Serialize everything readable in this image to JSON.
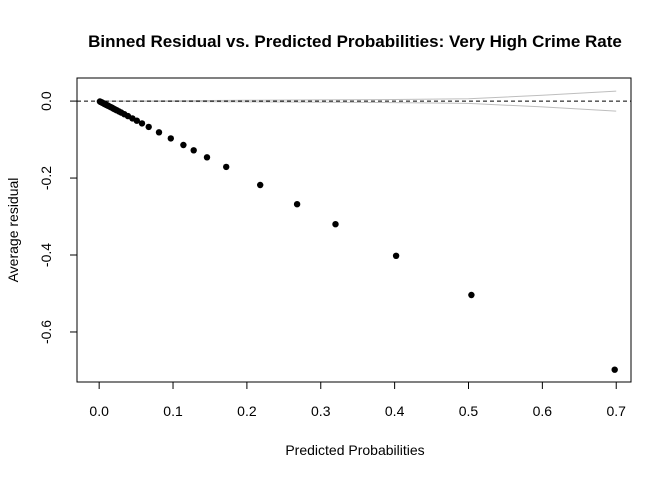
{
  "chart_data": {
    "type": "scatter",
    "title": "Binned Residual vs. Predicted Probabilities: Very High Crime Rate",
    "xlabel": "Predicted Probabilities",
    "ylabel": "Average residual",
    "xlim": [
      -0.03,
      0.72
    ],
    "ylim": [
      -0.73,
      0.06
    ],
    "x_ticks": [
      0.0,
      0.1,
      0.2,
      0.3,
      0.4,
      0.5,
      0.6,
      0.7
    ],
    "x_tick_labels": [
      "0.0",
      "0.1",
      "0.2",
      "0.3",
      "0.4",
      "0.5",
      "0.6",
      "0.7"
    ],
    "y_ticks": [
      0.0,
      -0.2,
      -0.4,
      -0.6
    ],
    "y_tick_labels": [
      "0.0",
      "-0.2",
      "-0.4",
      "-0.6"
    ],
    "grid": false,
    "reference_line_y": 0.0,
    "point_color": "#000000",
    "band_color": "#bebebe",
    "series": [
      {
        "x": [
          0.001,
          0.002,
          0.003,
          0.004,
          0.005,
          0.006,
          0.007,
          0.008,
          0.009,
          0.01,
          0.011,
          0.012,
          0.014,
          0.016,
          0.018,
          0.02,
          0.022,
          0.024,
          0.027,
          0.03,
          0.034,
          0.039,
          0.045,
          0.051,
          0.058,
          0.067,
          0.081,
          0.097,
          0.114,
          0.128,
          0.146,
          0.172,
          0.218,
          0.268,
          0.32,
          0.402,
          0.504,
          0.698
        ],
        "y": [
          -0.001,
          -0.002,
          -0.003,
          -0.004,
          -0.005,
          -0.006,
          -0.007,
          -0.008,
          -0.009,
          -0.01,
          -0.011,
          -0.012,
          -0.014,
          -0.016,
          -0.018,
          -0.02,
          -0.022,
          -0.024,
          -0.027,
          -0.03,
          -0.034,
          -0.039,
          -0.045,
          -0.051,
          -0.058,
          -0.067,
          -0.081,
          -0.097,
          -0.114,
          -0.128,
          -0.146,
          -0.171,
          -0.218,
          -0.268,
          -0.32,
          -0.402,
          -0.504,
          -0.698
        ]
      }
    ],
    "bands": {
      "x": [
        0.0,
        0.1,
        0.2,
        0.3,
        0.4,
        0.5,
        0.6,
        0.7
      ],
      "upper": [
        0.0,
        0.001,
        0.002,
        0.003,
        0.004,
        0.006,
        0.015,
        0.026
      ],
      "lower": [
        0.0,
        -0.001,
        -0.002,
        -0.003,
        -0.004,
        -0.006,
        -0.015,
        -0.026
      ]
    }
  }
}
